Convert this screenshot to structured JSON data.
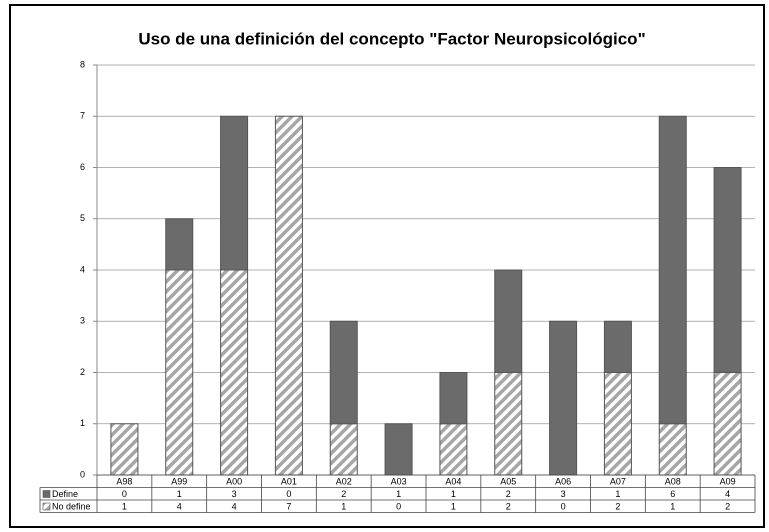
{
  "chart_data": {
    "type": "stacked-bar",
    "title": "Uso de una definición del concepto \"Factor Neuropsicológico\"",
    "categories": [
      "A98",
      "A99",
      "A00",
      "A01",
      "A02",
      "A03",
      "A04",
      "A05",
      "A06",
      "A07",
      "A08",
      "A09"
    ],
    "series": [
      {
        "name": "No define",
        "color": "#a6a6a6",
        "hatch": true,
        "values": [
          1,
          4,
          4,
          7,
          1,
          0,
          1,
          2,
          0,
          2,
          1,
          2
        ]
      },
      {
        "name": "Define",
        "color": "#6b6b6b",
        "hatch": false,
        "values": [
          0,
          1,
          3,
          0,
          2,
          1,
          1,
          2,
          3,
          1,
          6,
          4
        ]
      }
    ],
    "ylim": [
      0,
      8
    ],
    "yticks": [
      0,
      1,
      2,
      3,
      4,
      5,
      6,
      7,
      8
    ],
    "grid": true,
    "table_order": [
      1,
      0
    ]
  }
}
